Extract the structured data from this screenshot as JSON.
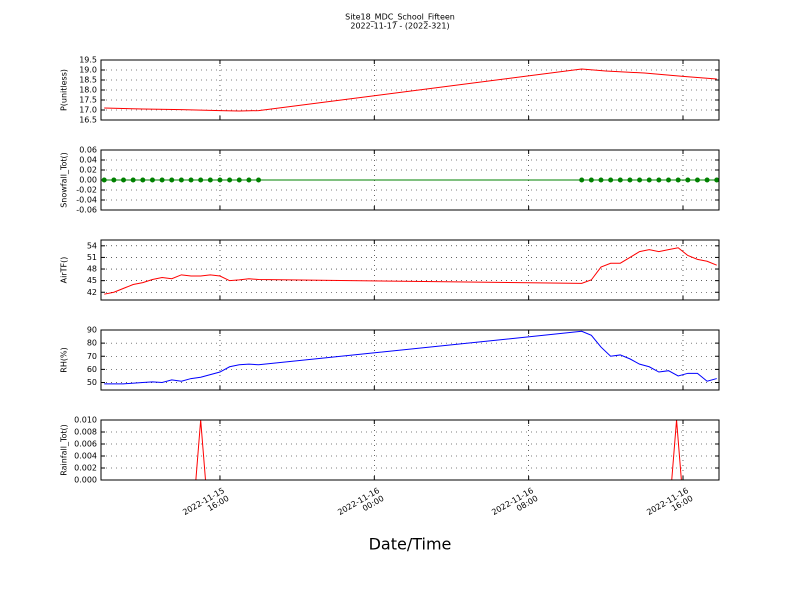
{
  "chart_data": [
    {
      "type": "line",
      "title": "Site18_MDC_School_Fifteen",
      "subtitle": "2022-11-17 - (2022-321)",
      "ylabel": "P(unitless)",
      "color": "#ff0000",
      "grid": true,
      "x": [
        "2022-11-15 10:00",
        "2022-11-15 12:00",
        "2022-11-15 14:00",
        "2022-11-15 16:00",
        "2022-11-15 17:00",
        "2022-11-15 18:00",
        "2022-11-16 10:45",
        "2022-11-16 12:00",
        "2022-11-16 14:00",
        "2022-11-16 16:00",
        "2022-11-16 17:45"
      ],
      "values": [
        17.1,
        17.05,
        17.02,
        16.97,
        16.95,
        16.97,
        19.05,
        18.95,
        18.85,
        18.68,
        18.55
      ],
      "xlim": [
        "2022-11-15 09:50",
        "2022-11-16 17:52"
      ],
      "xticks": [
        "2022-11-15 16:00",
        "2022-11-16 00:00",
        "2022-11-16 08:00",
        "2022-11-16 16:00"
      ],
      "ylim": [
        16.5,
        19.5
      ],
      "yticks": [
        16.5,
        {
          "value": 17,
          "label": "17.0"
        },
        17.5,
        {
          "value": 18,
          "label": "18.0"
        },
        18.5,
        {
          "value": 19,
          "label": "19.0"
        },
        19.5
      ]
    },
    {
      "type": "line",
      "ylabel": "Snowfall_Tot()",
      "color": "#008000",
      "marker": true,
      "grid": true,
      "x": [
        "2022-11-15 10:00",
        "2022-11-15 10:30",
        "2022-11-15 11:00",
        "2022-11-15 11:30",
        "2022-11-15 12:00",
        "2022-11-15 12:30",
        "2022-11-15 13:00",
        "2022-11-15 13:30",
        "2022-11-15 14:00",
        "2022-11-15 14:30",
        "2022-11-15 15:00",
        "2022-11-15 15:30",
        "2022-11-15 16:00",
        "2022-11-15 16:30",
        "2022-11-15 17:00",
        "2022-11-15 17:30",
        "2022-11-15 18:00",
        "2022-11-16 10:45",
        "2022-11-16 11:15",
        "2022-11-16 11:45",
        "2022-11-16 12:15",
        "2022-11-16 12:45",
        "2022-11-16 13:15",
        "2022-11-16 13:45",
        "2022-11-16 14:15",
        "2022-11-16 14:45",
        "2022-11-16 15:15",
        "2022-11-16 15:45",
        "2022-11-16 16:15",
        "2022-11-16 16:45",
        "2022-11-16 17:15",
        "2022-11-16 17:45"
      ],
      "values": [
        0,
        0,
        0,
        0,
        0,
        0,
        0,
        0,
        0,
        0,
        0,
        0,
        0,
        0,
        0,
        0,
        0,
        0,
        0,
        0,
        0,
        0,
        0,
        0,
        0,
        0,
        0,
        0,
        0,
        0,
        0,
        0
      ],
      "xlim": [
        "2022-11-15 09:50",
        "2022-11-16 17:52"
      ],
      "xticks": [
        "2022-11-15 16:00",
        "2022-11-16 00:00",
        "2022-11-16 08:00",
        "2022-11-16 16:00"
      ],
      "ylim": [
        -0.06,
        0.06
      ],
      "yticks": [
        -0.06,
        -0.04,
        -0.02,
        {
          "value": 0,
          "label": "0.00"
        },
        0.02,
        0.04,
        0.06
      ]
    },
    {
      "type": "line",
      "ylabel": "AirTF()",
      "color": "#ff0000",
      "grid": true,
      "x": [
        "2022-11-15 10:00",
        "2022-11-15 10:30",
        "2022-11-15 11:00",
        "2022-11-15 11:30",
        "2022-11-15 12:00",
        "2022-11-15 12:30",
        "2022-11-15 13:00",
        "2022-11-15 13:30",
        "2022-11-15 14:00",
        "2022-11-15 14:30",
        "2022-11-15 15:00",
        "2022-11-15 15:30",
        "2022-11-15 16:00",
        "2022-11-15 16:30",
        "2022-11-15 17:00",
        "2022-11-15 17:30",
        "2022-11-15 18:00",
        "2022-11-16 10:45",
        "2022-11-16 11:15",
        "2022-11-16 11:45",
        "2022-11-16 12:15",
        "2022-11-16 12:45",
        "2022-11-16 13:15",
        "2022-11-16 13:45",
        "2022-11-16 14:15",
        "2022-11-16 14:45",
        "2022-11-16 15:15",
        "2022-11-16 15:45",
        "2022-11-16 16:15",
        "2022-11-16 16:45",
        "2022-11-16 17:15",
        "2022-11-16 17:45"
      ],
      "values": [
        41.5,
        42,
        43,
        44,
        44.5,
        45.3,
        45.8,
        45.5,
        46.5,
        46.2,
        46.2,
        46.5,
        46.2,
        45,
        45.2,
        45.5,
        45.3,
        44.3,
        45.2,
        48.5,
        49.5,
        49.5,
        51,
        52.5,
        53,
        52.5,
        53,
        53.5,
        51.5,
        50.5,
        50,
        49
      ],
      "xlim": [
        "2022-11-15 09:50",
        "2022-11-16 17:52"
      ],
      "xticks": [
        "2022-11-15 16:00",
        "2022-11-16 00:00",
        "2022-11-16 08:00",
        "2022-11-16 16:00"
      ],
      "ylim": [
        40,
        55.5
      ],
      "yticks": [
        42,
        45,
        48,
        51,
        54
      ]
    },
    {
      "type": "line",
      "ylabel": "RH(%)",
      "color": "#0000ff",
      "grid": true,
      "x": [
        "2022-11-15 10:00",
        "2022-11-15 11:00",
        "2022-11-15 12:00",
        "2022-11-15 12:30",
        "2022-11-15 13:00",
        "2022-11-15 13:30",
        "2022-11-15 14:00",
        "2022-11-15 14:30",
        "2022-11-15 15:00",
        "2022-11-15 15:30",
        "2022-11-15 16:00",
        "2022-11-15 16:30",
        "2022-11-15 17:00",
        "2022-11-15 17:30",
        "2022-11-15 18:00",
        "2022-11-16 10:45",
        "2022-11-16 11:15",
        "2022-11-16 11:45",
        "2022-11-16 12:15",
        "2022-11-16 12:45",
        "2022-11-16 13:15",
        "2022-11-16 13:45",
        "2022-11-16 14:15",
        "2022-11-16 14:45",
        "2022-11-16 15:15",
        "2022-11-16 15:45",
        "2022-11-16 16:15",
        "2022-11-16 16:45",
        "2022-11-16 17:15",
        "2022-11-16 17:45"
      ],
      "values": [
        49,
        49,
        50,
        50.5,
        50,
        52,
        51,
        53,
        54,
        56,
        58,
        62,
        63.5,
        64,
        63.5,
        89,
        86,
        77,
        70,
        71,
        68,
        64,
        62,
        58,
        59,
        55,
        57,
        57,
        51,
        53
      ],
      "xlim": [
        "2022-11-15 09:50",
        "2022-11-16 17:52"
      ],
      "xticks": [
        "2022-11-15 16:00",
        "2022-11-16 00:00",
        "2022-11-16 08:00",
        "2022-11-16 16:00"
      ],
      "ylim": [
        44.3,
        90
      ],
      "yticks": [
        50,
        60,
        70,
        80,
        90
      ]
    },
    {
      "type": "line",
      "ylabel": "Rainfall_Tot()",
      "xlabel": "Date/Time",
      "color": "#ff0000",
      "grid": true,
      "x": [
        "2022-11-15 10:00",
        "2022-11-15 14:45",
        "2022-11-15 15:00",
        "2022-11-15 15:15",
        "2022-11-15 18:00",
        "2022-11-16 10:45",
        "2022-11-16 15:25",
        "2022-11-16 15:40",
        "2022-11-16 15:55",
        "2022-11-16 17:45"
      ],
      "values": [
        0,
        0,
        0.01,
        0,
        0,
        0,
        0,
        0.01,
        0,
        0
      ],
      "xlim": [
        "2022-11-15 09:50",
        "2022-11-16 17:52"
      ],
      "xticks": [
        {
          "value": "2022-11-15 16:00",
          "label": "2022-11-15\n16:00"
        },
        {
          "value": "2022-11-16 00:00",
          "label": "2022-11-16\n00:00"
        },
        {
          "value": "2022-11-16 08:00",
          "label": "2022-11-16\n08:00"
        },
        {
          "value": "2022-11-16 16:00",
          "label": "2022-11-16\n16:00"
        }
      ],
      "ylim": [
        0,
        0.01
      ],
      "yticks": [
        {
          "value": 0,
          "label": "0.000"
        },
        {
          "value": 0.002,
          "label": "0.002"
        },
        {
          "value": 0.004,
          "label": "0.004"
        },
        {
          "value": 0.006,
          "label": "0.006"
        },
        {
          "value": 0.008,
          "label": "0.008"
        },
        {
          "value": 0.01,
          "label": "0.010"
        }
      ]
    }
  ]
}
